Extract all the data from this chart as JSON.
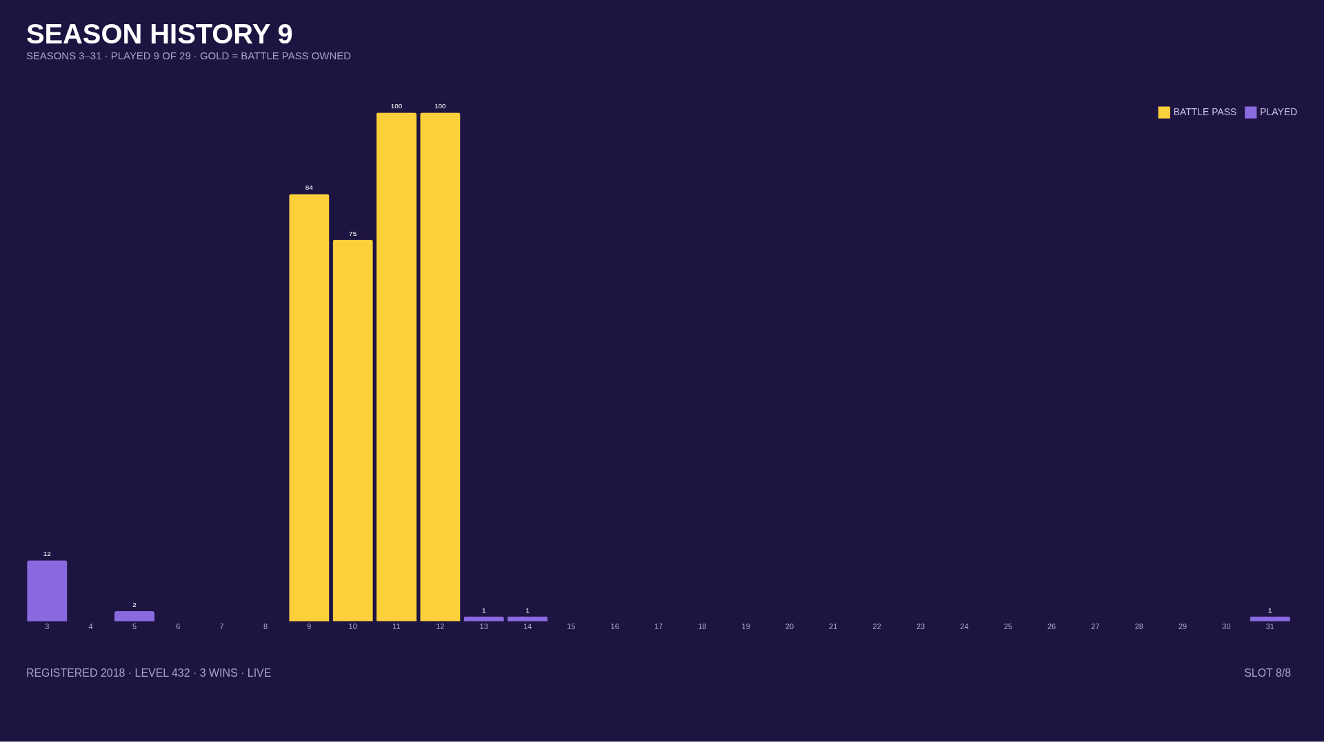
{
  "chart_data": {
    "type": "bar",
    "title": "SEASON HISTORY 9",
    "subtitle": "SEASONS 3–31 · PLAYED 9 OF 29 · GOLD = BATTLE PASS OWNED",
    "categories": [
      "3",
      "4",
      "5",
      "6",
      "7",
      "8",
      "9",
      "10",
      "11",
      "12",
      "13",
      "14",
      "15",
      "16",
      "17",
      "18",
      "19",
      "20",
      "21",
      "22",
      "23",
      "24",
      "25",
      "26",
      "27",
      "28",
      "29",
      "30",
      "31"
    ],
    "series": [
      {
        "name": "BATTLE PASS",
        "color": "#fcd03a",
        "values": [
          null,
          null,
          null,
          null,
          null,
          null,
          84,
          75,
          100,
          100,
          null,
          null,
          null,
          null,
          null,
          null,
          null,
          null,
          null,
          null,
          null,
          null,
          null,
          null,
          null,
          null,
          null,
          null,
          null
        ]
      },
      {
        "name": "PLAYED",
        "color": "#8a6ae0",
        "values": [
          12,
          null,
          2,
          null,
          null,
          null,
          null,
          null,
          null,
          null,
          1,
          1,
          null,
          null,
          null,
          null,
          null,
          null,
          null,
          null,
          null,
          null,
          null,
          null,
          null,
          null,
          null,
          null,
          1
        ]
      }
    ],
    "data_labels": true,
    "legend": "top right",
    "grid": false,
    "annotations": [
      "REGISTERED 2018 · LEVEL 432 · 3 WINS · LIVE",
      "SLOT 8/8"
    ]
  }
}
